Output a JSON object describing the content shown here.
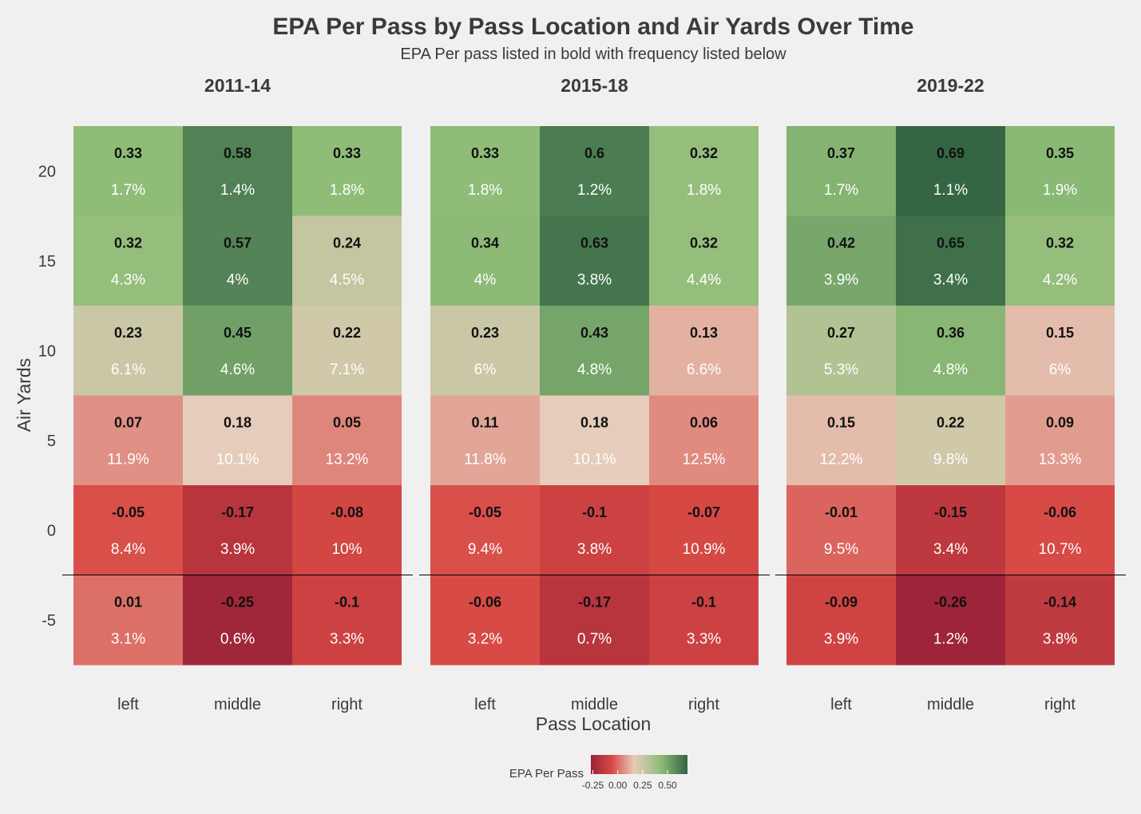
{
  "chart_data": {
    "type": "heatmap",
    "title": "EPA Per Pass by Pass Location and Air Yards Over Time",
    "subtitle": "EPA Per pass listed in bold with frequency listed below",
    "xlabel": "Pass Location",
    "ylabel": "Air Yards",
    "x_categories": [
      "left",
      "middle",
      "right"
    ],
    "y_ticks": [
      "20",
      "15",
      "10",
      "5",
      "0",
      "-5"
    ],
    "y_values": [
      20,
      15,
      10,
      5,
      0,
      -5
    ],
    "legend": {
      "title": "EPA Per Pass",
      "ticks": [
        "-0.25",
        "0.00",
        "0.25",
        "0.50"
      ],
      "tick_values": [
        -0.25,
        0.0,
        0.25,
        0.5
      ],
      "range": [
        -0.27,
        0.7
      ],
      "placement": "bottom"
    },
    "facets": [
      {
        "name": "2011-14",
        "cells": [
          [
            {
              "epa": "0.33",
              "freq": "1.7%"
            },
            {
              "epa": "0.58",
              "freq": "1.4%"
            },
            {
              "epa": "0.33",
              "freq": "1.8%"
            }
          ],
          [
            {
              "epa": "0.32",
              "freq": "4.3%"
            },
            {
              "epa": "0.57",
              "freq": "4%"
            },
            {
              "epa": "0.24",
              "freq": "4.5%"
            }
          ],
          [
            {
              "epa": "0.23",
              "freq": "6.1%"
            },
            {
              "epa": "0.45",
              "freq": "4.6%"
            },
            {
              "epa": "0.22",
              "freq": "7.1%"
            }
          ],
          [
            {
              "epa": "0.07",
              "freq": "11.9%"
            },
            {
              "epa": "0.18",
              "freq": "10.1%"
            },
            {
              "epa": "0.05",
              "freq": "13.2%"
            }
          ],
          [
            {
              "epa": "-0.05",
              "freq": "8.4%"
            },
            {
              "epa": "-0.17",
              "freq": "3.9%"
            },
            {
              "epa": "-0.08",
              "freq": "10%"
            }
          ],
          [
            {
              "epa": "0.01",
              "freq": "3.1%"
            },
            {
              "epa": "-0.25",
              "freq": "0.6%"
            },
            {
              "epa": "-0.1",
              "freq": "3.3%"
            }
          ]
        ]
      },
      {
        "name": "2015-18",
        "cells": [
          [
            {
              "epa": "0.33",
              "freq": "1.8%"
            },
            {
              "epa": "0.6",
              "freq": "1.2%"
            },
            {
              "epa": "0.32",
              "freq": "1.8%"
            }
          ],
          [
            {
              "epa": "0.34",
              "freq": "4%"
            },
            {
              "epa": "0.63",
              "freq": "3.8%"
            },
            {
              "epa": "0.32",
              "freq": "4.4%"
            }
          ],
          [
            {
              "epa": "0.23",
              "freq": "6%"
            },
            {
              "epa": "0.43",
              "freq": "4.8%"
            },
            {
              "epa": "0.13",
              "freq": "6.6%"
            }
          ],
          [
            {
              "epa": "0.11",
              "freq": "11.8%"
            },
            {
              "epa": "0.18",
              "freq": "10.1%"
            },
            {
              "epa": "0.06",
              "freq": "12.5%"
            }
          ],
          [
            {
              "epa": "-0.05",
              "freq": "9.4%"
            },
            {
              "epa": "-0.1",
              "freq": "3.8%"
            },
            {
              "epa": "-0.07",
              "freq": "10.9%"
            }
          ],
          [
            {
              "epa": "-0.06",
              "freq": "3.2%"
            },
            {
              "epa": "-0.17",
              "freq": "0.7%"
            },
            {
              "epa": "-0.1",
              "freq": "3.3%"
            }
          ]
        ]
      },
      {
        "name": "2019-22",
        "cells": [
          [
            {
              "epa": "0.37",
              "freq": "1.7%"
            },
            {
              "epa": "0.69",
              "freq": "1.1%"
            },
            {
              "epa": "0.35",
              "freq": "1.9%"
            }
          ],
          [
            {
              "epa": "0.42",
              "freq": "3.9%"
            },
            {
              "epa": "0.65",
              "freq": "3.4%"
            },
            {
              "epa": "0.32",
              "freq": "4.2%"
            }
          ],
          [
            {
              "epa": "0.27",
              "freq": "5.3%"
            },
            {
              "epa": "0.36",
              "freq": "4.8%"
            },
            {
              "epa": "0.15",
              "freq": "6%"
            }
          ],
          [
            {
              "epa": "0.15",
              "freq": "12.2%"
            },
            {
              "epa": "0.22",
              "freq": "9.8%"
            },
            {
              "epa": "0.09",
              "freq": "13.3%"
            }
          ],
          [
            {
              "epa": "-0.01",
              "freq": "9.5%"
            },
            {
              "epa": "-0.15",
              "freq": "3.4%"
            },
            {
              "epa": "-0.06",
              "freq": "10.7%"
            }
          ],
          [
            {
              "epa": "-0.09",
              "freq": "3.9%"
            },
            {
              "epa": "-0.26",
              "freq": "1.2%"
            },
            {
              "epa": "-0.14",
              "freq": "3.8%"
            }
          ]
        ]
      }
    ],
    "reference_line_air_yards": -2.5,
    "colors": {
      "low": "#9a2238",
      "neg": "#d84a45",
      "zero": "#e6ccbb",
      "pos": "#8fbd78",
      "high": "#336443"
    }
  }
}
